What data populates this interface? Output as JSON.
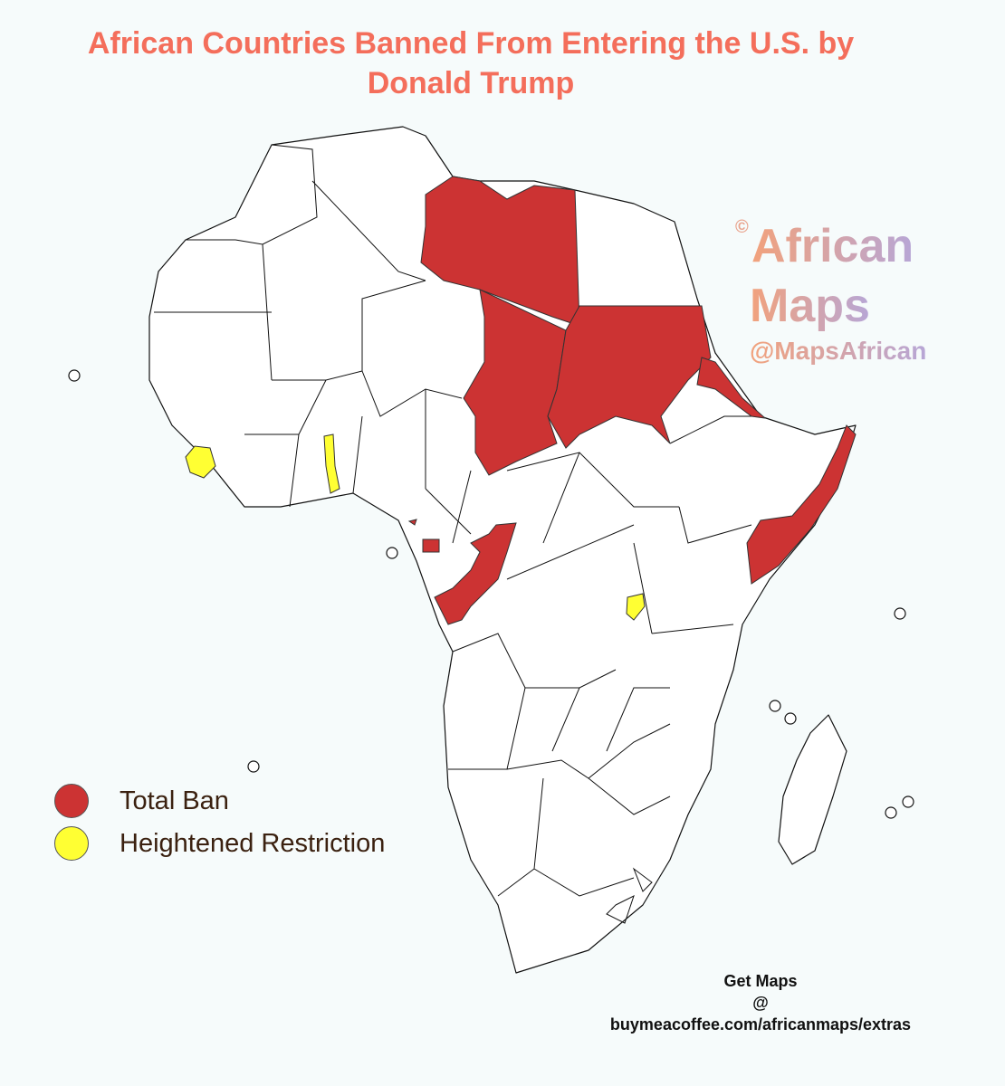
{
  "title": "African Countries Banned From Entering the U.S. by Donald Trump",
  "watermark": {
    "symbol": "©",
    "line1": "African",
    "line2": "Maps",
    "handle": "@MapsAfrican"
  },
  "legend": [
    {
      "label": "Total Ban",
      "color": "#cc3333"
    },
    {
      "label": "Heightened Restriction",
      "color": "#ffff33"
    }
  ],
  "footer": {
    "line1": "Get Maps",
    "line2": "@",
    "line3": "buymeacoffee.com/africanmaps/extras"
  }
}
